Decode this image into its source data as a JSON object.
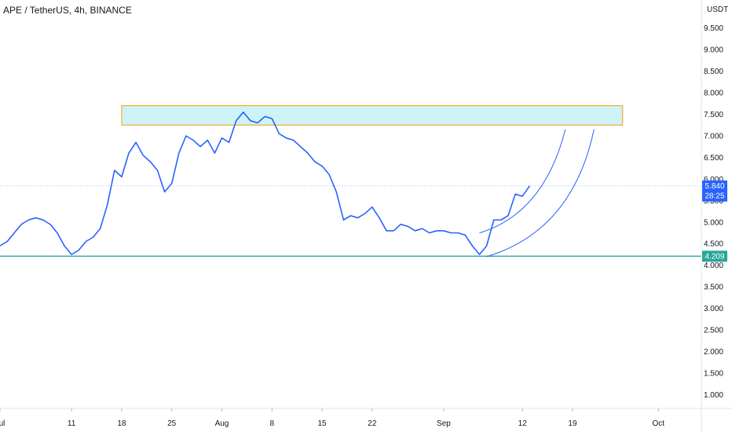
{
  "header": {
    "title": "APE / TetherUS, 4h, BINANCE"
  },
  "colors": {
    "background": "#ffffff",
    "price_line": "#2962ff",
    "support_line": "#26a69a",
    "zone_fill": "#cdf3f6",
    "zone_border": "#f59f00",
    "axis_text": "#131722",
    "gridline": "#f0f3fa",
    "current_price_label_bg": "#2962ff",
    "support_label_bg": "#26a69a"
  },
  "chart_data": {
    "type": "line",
    "title": "APE / TetherUS, 4h, BINANCE",
    "ylabel": "USDT",
    "xlabel": "",
    "ylim": [
      0.68,
      10.15
    ],
    "y_ticks": [
      "1.000",
      "1.500",
      "2.000",
      "2.500",
      "3.000",
      "3.500",
      "4.000",
      "4.500",
      "5.000",
      "5.500",
      "6.000",
      "6.500",
      "7.000",
      "7.500",
      "8.000",
      "8.500",
      "9.000",
      "9.500"
    ],
    "x_ticks": [
      "Jul",
      "11",
      "18",
      "25",
      "Aug",
      "8",
      "15",
      "22",
      "Sep",
      "12",
      "19",
      "Oct"
    ],
    "x_tick_dates": [
      "2022-07-01",
      "2022-07-11",
      "2022-07-18",
      "2022-07-25",
      "2022-08-01",
      "2022-08-08",
      "2022-08-15",
      "2022-08-22",
      "2022-09-01",
      "2022-09-12",
      "2022-09-19",
      "2022-10-01"
    ],
    "xlim": [
      "2022-07-01",
      "2022-10-07"
    ],
    "grid": false,
    "series": [
      {
        "values_x": [
          "2022-07-01",
          "2022-07-02",
          "2022-07-03",
          "2022-07-04",
          "2022-07-05",
          "2022-07-06",
          "2022-07-07",
          "2022-07-08",
          "2022-07-09",
          "2022-07-10",
          "2022-07-11",
          "2022-07-12",
          "2022-07-13",
          "2022-07-14",
          "2022-07-15",
          "2022-07-16",
          "2022-07-17",
          "2022-07-18",
          "2022-07-19",
          "2022-07-20",
          "2022-07-21",
          "2022-07-22",
          "2022-07-23",
          "2022-07-24",
          "2022-07-25",
          "2022-07-26",
          "2022-07-27",
          "2022-07-28",
          "2022-07-29",
          "2022-07-30",
          "2022-07-31",
          "2022-08-01",
          "2022-08-02",
          "2022-08-03",
          "2022-08-04",
          "2022-08-05",
          "2022-08-06",
          "2022-08-07",
          "2022-08-08",
          "2022-08-09",
          "2022-08-10",
          "2022-08-11",
          "2022-08-12",
          "2022-08-13",
          "2022-08-14",
          "2022-08-15",
          "2022-08-16",
          "2022-08-17",
          "2022-08-18",
          "2022-08-19",
          "2022-08-20",
          "2022-08-21",
          "2022-08-22",
          "2022-08-23",
          "2022-08-24",
          "2022-08-25",
          "2022-08-26",
          "2022-08-27",
          "2022-08-28",
          "2022-08-29",
          "2022-08-30",
          "2022-08-31",
          "2022-09-01",
          "2022-09-02",
          "2022-09-03",
          "2022-09-04",
          "2022-09-05",
          "2022-09-06",
          "2022-09-07",
          "2022-09-08",
          "2022-09-09",
          "2022-09-10",
          "2022-09-11",
          "2022-09-12",
          "2022-09-13"
        ],
        "values": [
          4.45,
          4.55,
          4.75,
          4.95,
          5.05,
          5.1,
          5.05,
          4.95,
          4.75,
          4.45,
          4.25,
          4.35,
          4.55,
          4.65,
          4.85,
          5.4,
          6.2,
          6.05,
          6.6,
          6.85,
          6.55,
          6.4,
          6.2,
          5.7,
          5.9,
          6.6,
          7.0,
          6.9,
          6.75,
          6.9,
          6.6,
          6.95,
          6.85,
          7.35,
          7.55,
          7.35,
          7.3,
          7.45,
          7.4,
          7.05,
          6.95,
          6.9,
          6.75,
          6.6,
          6.4,
          6.3,
          6.1,
          5.7,
          5.05,
          5.15,
          5.1,
          5.2,
          5.35,
          5.1,
          4.8,
          4.8,
          4.95,
          4.9,
          4.8,
          4.85,
          4.75,
          4.8,
          4.8,
          4.75,
          4.75,
          4.7,
          4.45,
          4.25,
          4.45,
          5.05,
          5.05,
          5.15,
          5.65,
          5.6,
          5.84
        ]
      }
    ],
    "annotations": [
      {
        "type": "resistance-zone",
        "y_range": [
          7.25,
          7.7
        ],
        "x_range": [
          "2022-07-18",
          "2022-09-26"
        ]
      },
      {
        "type": "horizontal-line",
        "y": 4.209,
        "label": "4.209"
      },
      {
        "type": "last-price-line",
        "y": 5.84,
        "label": "5.840",
        "countdown": "28:25"
      },
      {
        "type": "curved-arc",
        "count": 2
      }
    ]
  }
}
